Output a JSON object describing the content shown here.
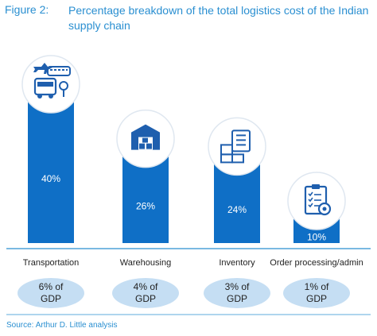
{
  "figure": {
    "label": "Figure 2:",
    "title": "Percentage breakdown of the total logistics cost of the Indian supply chain",
    "source": "Source: Arthur D. Little analysis"
  },
  "colors": {
    "bar": "#0f6fc6",
    "title": "#2a8fd1",
    "pill": "#c5def3",
    "icon": "#1f5fae",
    "circle_fill": "#ffffff",
    "circle_stroke": "#dfe7f0"
  },
  "chart_data": {
    "type": "bar",
    "title": "Percentage breakdown of the total logistics cost of the Indian supply chain",
    "categories": [
      "Transportation",
      "Warehousing",
      "Inventory",
      "Order processing/admin"
    ],
    "values": [
      40,
      26,
      24,
      10
    ],
    "value_labels": [
      "40%",
      "26%",
      "24%",
      "10%"
    ],
    "gdp_labels": [
      [
        "6% of",
        "GDP"
      ],
      [
        "4% of",
        "GDP"
      ],
      [
        "3% of",
        "GDP"
      ],
      [
        "1% of",
        "GDP"
      ]
    ],
    "icons": [
      "transport-icon",
      "warehouse-icon",
      "inventory-icon",
      "order-clipboard-icon"
    ],
    "xlabel": "",
    "ylabel": "",
    "ylim": [
      0,
      40
    ],
    "grid": false,
    "legend": "none"
  }
}
